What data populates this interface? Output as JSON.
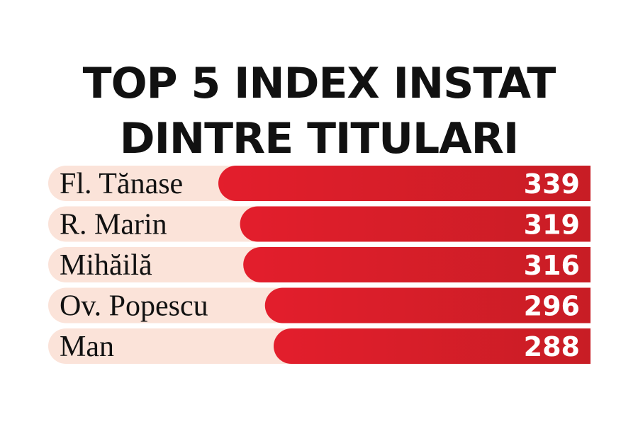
{
  "chart_data": {
    "type": "bar",
    "orientation": "horizontal",
    "title": "TOP 5 INDEX INSTAT",
    "subtitle": "DINTRE TITULARI",
    "categories": [
      "Fl. Tănase",
      "R. Marin",
      "Mihăilă",
      "Ov. Popescu",
      "Man"
    ],
    "values": [
      339,
      319,
      316,
      296,
      288
    ],
    "xlabel": "",
    "ylabel": "",
    "grid": false,
    "legend": "none",
    "colors": {
      "bar": "#e31e2c",
      "bar_dark": "#c81d25",
      "row_background": "#fbe3d9",
      "title": "#111111",
      "value_text": "#ffffff"
    }
  }
}
